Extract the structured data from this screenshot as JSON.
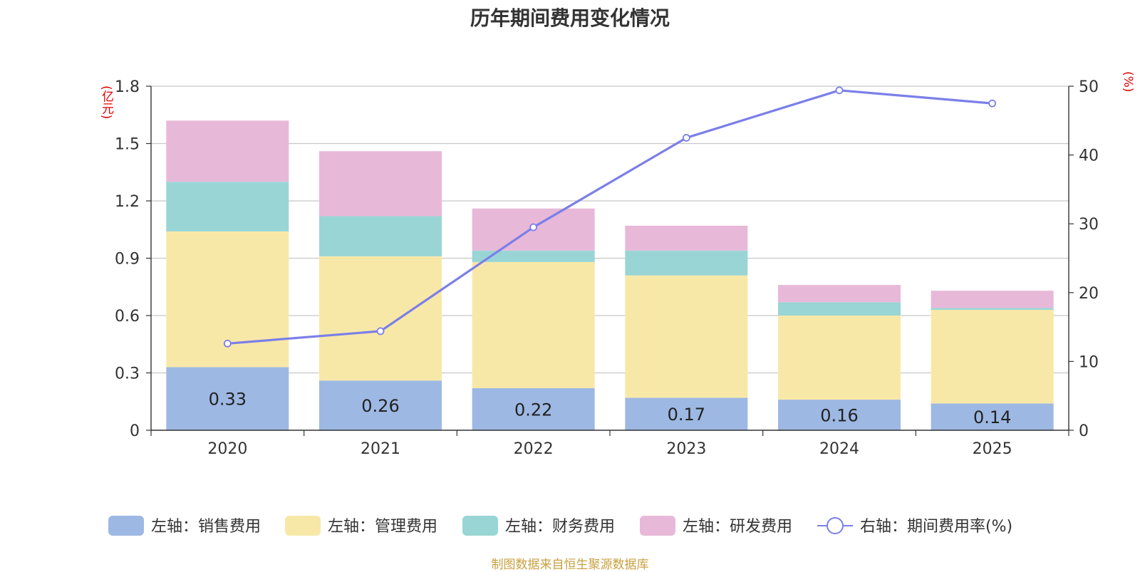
{
  "chart_data": {
    "type": "bar",
    "stacked": true,
    "title": "历年期间费用变化情况",
    "categories": [
      "2020",
      "2021",
      "2022",
      "2023",
      "2024",
      "2025"
    ],
    "series": [
      {
        "name": "左轴：销售费用",
        "axis": "left",
        "color": "#9db8e3",
        "values": [
          0.33,
          0.26,
          0.22,
          0.17,
          0.16,
          0.14
        ],
        "labels": [
          "0.33",
          "0.26",
          "0.22",
          "0.17",
          "0.16",
          "0.14"
        ]
      },
      {
        "name": "左轴：管理费用",
        "axis": "left",
        "color": "#f8e8a8",
        "values": [
          0.71,
          0.65,
          0.66,
          0.64,
          0.44,
          0.49
        ]
      },
      {
        "name": "左轴：财务费用",
        "axis": "left",
        "color": "#99d5d5",
        "values": [
          0.26,
          0.21,
          0.06,
          0.13,
          0.07,
          0.01
        ]
      },
      {
        "name": "左轴：研发费用",
        "axis": "left",
        "color": "#e8b8d8",
        "values": [
          0.32,
          0.34,
          0.22,
          0.13,
          0.09,
          0.09
        ]
      },
      {
        "name": "右轴：期间费用率(%)",
        "axis": "right",
        "type": "line",
        "color": "#7b7fe8",
        "values": [
          12.6,
          14.4,
          29.5,
          42.5,
          49.4,
          47.5
        ]
      }
    ],
    "y_left": {
      "unit": "(亿元)",
      "min": 0,
      "max": 1.8,
      "ticks": [
        0,
        0.3,
        0.6,
        0.9,
        1.2,
        1.5,
        1.8
      ],
      "tick_labels": [
        "0",
        "0.3",
        "0.6",
        "0.9",
        "1.2",
        "1.5",
        "1.8"
      ]
    },
    "y_right": {
      "unit": "(%)",
      "min": 0,
      "max": 50,
      "ticks": [
        0,
        10,
        20,
        30,
        40,
        50
      ],
      "tick_labels": [
        "0",
        "10",
        "20",
        "30",
        "40",
        "50"
      ]
    },
    "legend_position": "bottom",
    "grid": true,
    "source": "制图数据来自恒生聚源数据库"
  }
}
